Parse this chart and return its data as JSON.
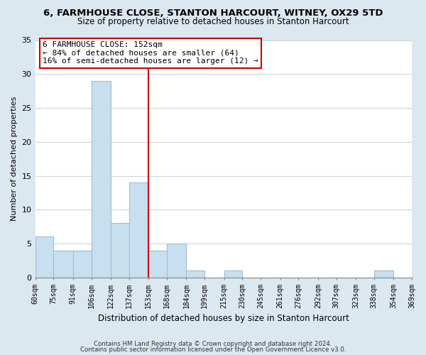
{
  "title": "6, FARMHOUSE CLOSE, STANTON HARCOURT, WITNEY, OX29 5TD",
  "subtitle": "Size of property relative to detached houses in Stanton Harcourt",
  "xlabel": "Distribution of detached houses by size in Stanton Harcourt",
  "ylabel": "Number of detached properties",
  "bins": [
    60,
    75,
    91,
    106,
    122,
    137,
    153,
    168,
    184,
    199,
    215,
    230,
    245,
    261,
    276,
    292,
    307,
    323,
    338,
    354,
    369
  ],
  "counts": [
    6,
    4,
    4,
    29,
    8,
    14,
    4,
    5,
    1,
    0,
    1,
    0,
    0,
    0,
    0,
    0,
    0,
    0,
    1,
    0
  ],
  "bar_color": "#c8dff0",
  "bar_edge_color": "#a0bcd8",
  "vline_x": 153,
  "vline_color": "#cc0000",
  "ylim": [
    0,
    35
  ],
  "yticks": [
    0,
    5,
    10,
    15,
    20,
    25,
    30,
    35
  ],
  "tick_labels": [
    "60sqm",
    "75sqm",
    "91sqm",
    "106sqm",
    "122sqm",
    "137sqm",
    "153sqm",
    "168sqm",
    "184sqm",
    "199sqm",
    "215sqm",
    "230sqm",
    "245sqm",
    "261sqm",
    "276sqm",
    "292sqm",
    "307sqm",
    "323sqm",
    "338sqm",
    "354sqm",
    "369sqm"
  ],
  "annotation_title": "6 FARMHOUSE CLOSE: 152sqm",
  "annotation_line1": "← 84% of detached houses are smaller (64)",
  "annotation_line2": "16% of semi-detached houses are larger (12) →",
  "annotation_box_color": "#ffffff",
  "annotation_box_edge": "#cc0000",
  "footer1": "Contains HM Land Registry data © Crown copyright and database right 2024.",
  "footer2": "Contains public sector information licensed under the Open Government Licence v3.0.",
  "fig_bg_color": "#dce8f0",
  "axes_bg_color": "#ffffff",
  "grid_color": "#c8d8e8"
}
